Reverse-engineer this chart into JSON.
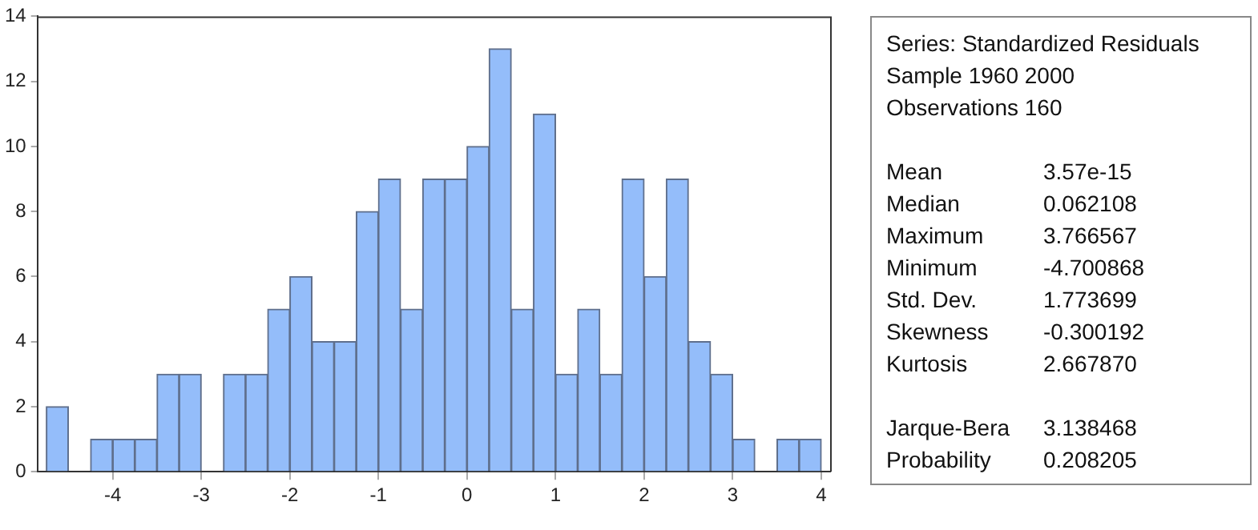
{
  "chart_data": {
    "type": "histogram",
    "bins": [
      -4.75,
      -4.5,
      -4.25,
      -4.0,
      -3.75,
      -3.5,
      -3.25,
      -3.0,
      -2.75,
      -2.5,
      -2.25,
      -2.0,
      -1.75,
      -1.5,
      -1.25,
      -1.0,
      -0.75,
      -0.5,
      -0.25,
      0,
      0.25,
      0.5,
      0.75,
      1.0,
      1.25,
      1.5,
      1.75,
      2.0,
      2.25,
      2.5,
      2.75,
      3.0,
      3.25,
      3.5,
      3.75,
      4.0
    ],
    "values": [
      2,
      0,
      1,
      1,
      1,
      3,
      3,
      0,
      3,
      3,
      5,
      6,
      4,
      4,
      8,
      9,
      5,
      9,
      9,
      10,
      13,
      5,
      11,
      3,
      5,
      3,
      9,
      6,
      9,
      4,
      3,
      1,
      0,
      1,
      1
    ],
    "color": "#94bdfa",
    "xlim": [
      -4.85,
      4.1
    ],
    "xticks": [
      -4,
      -3,
      -2,
      -1,
      0,
      1,
      2,
      3,
      4
    ],
    "ylim": [
      0,
      14
    ],
    "yticks": [
      0,
      2,
      4,
      6,
      8,
      10,
      12,
      14
    ],
    "grid": false,
    "legend": false,
    "annotations": [
      "Series: Standardized Residuals",
      "Sample 1960 2000",
      "Observations 160",
      "Mean 3.57e-15",
      "Median 0.062108",
      "Maximum 3.766567",
      "Minimum -4.700868",
      "Std. Dev. 1.773699",
      "Skewness -0.300192",
      "Kurtosis 2.667870",
      "Jarque-Bera 3.138468",
      "Probability 0.208205"
    ]
  }
}
